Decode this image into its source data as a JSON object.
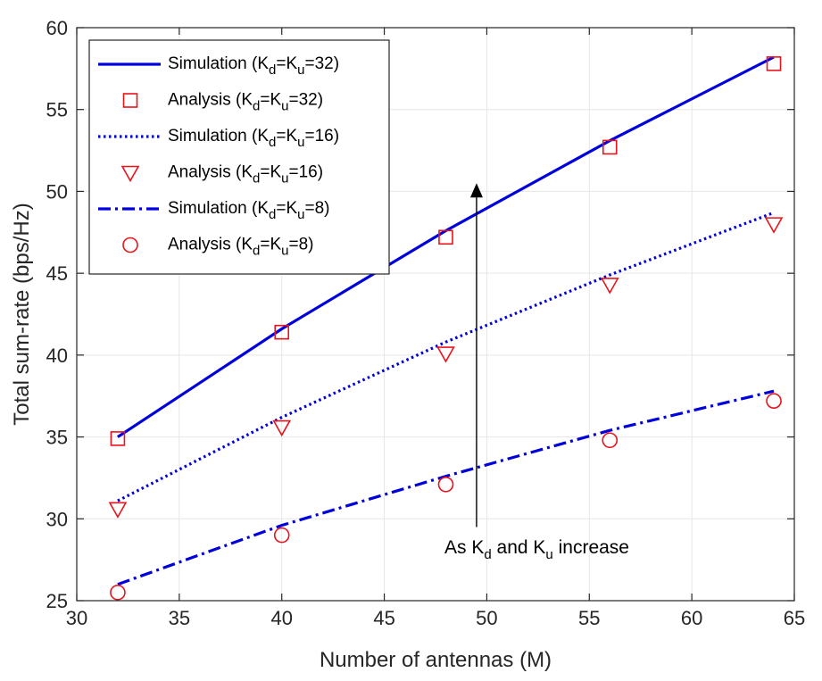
{
  "chart_data": {
    "type": "line",
    "xlabel": "Number of antennas (M)",
    "ylabel": "Total sum-rate (bps/Hz)",
    "xlim": [
      30,
      65
    ],
    "ylim": [
      25,
      60
    ],
    "xticks": [
      30,
      35,
      40,
      45,
      50,
      55,
      60,
      65
    ],
    "yticks": [
      25,
      30,
      35,
      40,
      45,
      50,
      55,
      60
    ],
    "x_tick_labels": [
      "30",
      "35",
      "40",
      "45",
      "50",
      "55",
      "60",
      "65"
    ],
    "y_tick_labels": [
      "25",
      "30",
      "35",
      "40",
      "45",
      "50",
      "55",
      "60"
    ],
    "grid": true,
    "legend_location": "top-left",
    "colors": {
      "simulation": "#0000dd",
      "analysis": "#e8141b",
      "axis": "#262626",
      "grid": "#e6e6e6"
    },
    "series": [
      {
        "name": "Simulation (K_d=K_u=32)",
        "label_main": "Simulation (K",
        "sub1": "d",
        "mid": "=K",
        "sub2": "u",
        "label_end": "=32)",
        "kind": "line",
        "style": "solid",
        "x": [
          32,
          40,
          48,
          56,
          64
        ],
        "values": [
          35.0,
          41.6,
          47.6,
          53.1,
          58.2
        ]
      },
      {
        "name": "Analysis (K_d=K_u=32)",
        "label_main": "Analysis (K",
        "sub1": "d",
        "mid": "=K",
        "sub2": "u",
        "label_end": "=32)",
        "kind": "marker",
        "marker": "square",
        "x": [
          32,
          40,
          48,
          56,
          64
        ],
        "values": [
          34.9,
          41.4,
          47.2,
          52.7,
          57.8
        ]
      },
      {
        "name": "Simulation (K_d=K_u=16)",
        "label_main": "Simulation (K",
        "sub1": "d",
        "mid": "=K",
        "sub2": "u",
        "label_end": "=16)",
        "kind": "line",
        "style": "dotted",
        "x": [
          32,
          40,
          48,
          56,
          64
        ],
        "values": [
          31.1,
          36.2,
          40.8,
          44.9,
          48.7
        ]
      },
      {
        "name": "Analysis (K_d=K_u=16)",
        "label_main": "Analysis (K",
        "sub1": "d",
        "mid": "=K",
        "sub2": "u",
        "label_end": "=16)",
        "kind": "marker",
        "marker": "triangle-down",
        "x": [
          32,
          40,
          48,
          56,
          64
        ],
        "values": [
          30.6,
          35.6,
          40.1,
          44.3,
          48.0
        ]
      },
      {
        "name": "Simulation (K_d=K_u=8)",
        "label_main": "Simulation (K",
        "sub1": "d",
        "mid": "=K",
        "sub2": "u",
        "label_end": "=8)",
        "kind": "line",
        "style": "dashdot",
        "x": [
          32,
          40,
          48,
          56,
          64
        ],
        "values": [
          26.0,
          29.6,
          32.6,
          35.4,
          37.8
        ]
      },
      {
        "name": "Analysis (K_d=K_u=8)",
        "label_main": "Analysis (K",
        "sub1": "d",
        "mid": "=K",
        "sub2": "u",
        "label_end": "=8)",
        "kind": "marker",
        "marker": "circle",
        "x": [
          32,
          40,
          48,
          56,
          64
        ],
        "values": [
          25.5,
          29.0,
          32.1,
          34.8,
          37.2
        ]
      }
    ],
    "annotation": {
      "text_a": "As K",
      "sub_a": "d",
      "text_b": " and K",
      "sub_b": "u",
      "text_c": " increase",
      "arrow_x": 49.5,
      "arrow_from_y": 29.5,
      "arrow_to_y": 50.5
    }
  }
}
